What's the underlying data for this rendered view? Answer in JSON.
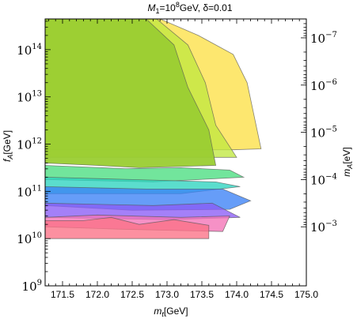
{
  "chart_data": {
    "type": "area",
    "title": {
      "pre": "M",
      "sub1": "1",
      "mid": "=10",
      "sup": "8",
      "post": "GeV, δ=0.01"
    },
    "xlabel": {
      "main": "m",
      "sub": "t",
      "unit": "[GeV]"
    },
    "ylabel_left": {
      "main": "f",
      "sub": "A",
      "unit": "[GeV]"
    },
    "ylabel_right": {
      "main": "m",
      "sub": "A",
      "unit": "[eV]"
    },
    "xlim": [
      171.25,
      175.0
    ],
    "ylim_log10": [
      9.0,
      14.65
    ],
    "x_ticks": [
      "171.5",
      "172.0",
      "172.5",
      "173.0",
      "173.5",
      "174.0",
      "174.5",
      "175.0"
    ],
    "x_tick_values": [
      171.5,
      172.0,
      172.5,
      173.0,
      173.5,
      174.0,
      174.5,
      175.0
    ],
    "y_left_ticks": [
      {
        "exp": 9,
        "base": "10",
        "sup": "9"
      },
      {
        "exp": 10,
        "base": "10",
        "sup": "10"
      },
      {
        "exp": 11,
        "base": "10",
        "sup": "11"
      },
      {
        "exp": 12,
        "base": "10",
        "sup": "12"
      },
      {
        "exp": 13,
        "base": "10",
        "sup": "13"
      },
      {
        "exp": 14,
        "base": "10",
        "sup": "14"
      }
    ],
    "y_right_ticks": [
      {
        "log_fa": 10.25,
        "base": "10",
        "sup": "−3"
      },
      {
        "log_fa": 11.25,
        "base": "10",
        "sup": "−4"
      },
      {
        "log_fa": 12.25,
        "base": "10",
        "sup": "−5"
      },
      {
        "log_fa": 13.25,
        "base": "10",
        "sup": "−6"
      },
      {
        "log_fa": 14.25,
        "base": "10",
        "sup": "−7"
      }
    ],
    "series": [
      {
        "color": "#fde047",
        "points": [
          [
            171.25,
            14.65
          ],
          [
            172.9,
            14.65
          ],
          [
            173.45,
            14.3
          ],
          [
            173.95,
            13.9
          ],
          [
            174.15,
            13.3
          ],
          [
            174.35,
            11.9
          ],
          [
            173.95,
            11.88
          ],
          [
            171.25,
            11.88
          ]
        ]
      },
      {
        "color": "#c0e840",
        "points": [
          [
            171.25,
            14.65
          ],
          [
            172.85,
            14.65
          ],
          [
            173.3,
            14.1
          ],
          [
            173.55,
            13.3
          ],
          [
            173.7,
            12.4
          ],
          [
            174.0,
            11.72
          ],
          [
            171.25,
            11.72
          ]
        ]
      },
      {
        "color": "#4ade80",
        "points": [
          [
            171.25,
            11.55
          ],
          [
            172.4,
            11.48
          ],
          [
            173.2,
            11.5
          ],
          [
            173.9,
            11.45
          ],
          [
            174.1,
            11.3
          ],
          [
            172.8,
            11.2
          ],
          [
            171.25,
            11.25
          ]
        ]
      },
      {
        "color": "#2dd4bf",
        "points": [
          [
            171.25,
            11.3
          ],
          [
            172.5,
            11.25
          ],
          [
            173.7,
            11.2
          ],
          [
            174.05,
            11.1
          ],
          [
            173.2,
            10.95
          ],
          [
            171.25,
            10.95
          ]
        ]
      },
      {
        "color": "#3b82f6",
        "points": [
          [
            171.25,
            11.1
          ],
          [
            172.7,
            11.05
          ],
          [
            173.8,
            11.05
          ],
          [
            174.2,
            10.8
          ],
          [
            173.9,
            10.62
          ],
          [
            172.5,
            10.6
          ],
          [
            171.25,
            10.7
          ]
        ]
      },
      {
        "color": "#8b5cf6",
        "points": [
          [
            171.25,
            10.75
          ],
          [
            172.8,
            10.7
          ],
          [
            173.65,
            10.75
          ],
          [
            174.05,
            10.45
          ],
          [
            173.0,
            10.4
          ],
          [
            171.25,
            10.45
          ]
        ]
      },
      {
        "color": "#f472b6",
        "points": [
          [
            171.25,
            10.45
          ],
          [
            172.0,
            10.5
          ],
          [
            173.2,
            10.45
          ],
          [
            173.9,
            10.48
          ],
          [
            173.8,
            10.15
          ],
          [
            172.3,
            10.2
          ],
          [
            171.25,
            10.25
          ]
        ]
      },
      {
        "color": "#fb7185",
        "points": [
          [
            171.25,
            10.38
          ],
          [
            171.8,
            10.38
          ],
          [
            172.2,
            10.45
          ],
          [
            172.6,
            10.3
          ],
          [
            173.1,
            10.4
          ],
          [
            173.6,
            10.28
          ],
          [
            173.6,
            10.0
          ],
          [
            172.5,
            10.0
          ],
          [
            171.25,
            10.0
          ]
        ]
      },
      {
        "color": "#9acd32",
        "points": [
          [
            171.25,
            14.65
          ],
          [
            172.7,
            14.65
          ],
          [
            173.1,
            14.1
          ],
          [
            173.3,
            13.2
          ],
          [
            173.6,
            12.3
          ],
          [
            173.7,
            11.55
          ],
          [
            172.6,
            11.5
          ],
          [
            172.0,
            11.55
          ],
          [
            171.25,
            11.6
          ]
        ]
      }
    ]
  }
}
